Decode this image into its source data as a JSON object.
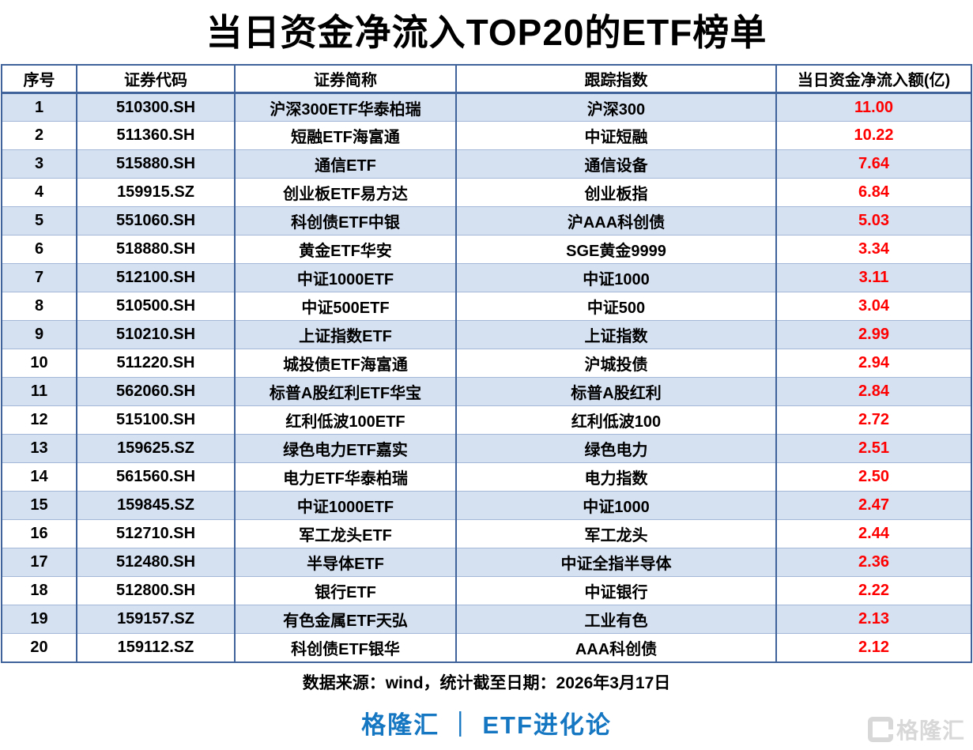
{
  "title": "当日资金净流入TOP20的ETF榜单",
  "chart_data": {
    "type": "table",
    "title": "当日资金净流入TOP20的ETF榜单",
    "columns": [
      "序号",
      "证券代码",
      "证券简称",
      "跟踪指数",
      "当日资金净流入额(亿)"
    ],
    "rows": [
      [
        "1",
        "510300.SH",
        "沪深300ETF华泰柏瑞",
        "沪深300",
        "11.00"
      ],
      [
        "2",
        "511360.SH",
        "短融ETF海富通",
        "中证短融",
        "10.22"
      ],
      [
        "3",
        "515880.SH",
        "通信ETF",
        "通信设备",
        "7.64"
      ],
      [
        "4",
        "159915.SZ",
        "创业板ETF易方达",
        "创业板指",
        "6.84"
      ],
      [
        "5",
        "551060.SH",
        "科创债ETF中银",
        "沪AAA科创债",
        "5.03"
      ],
      [
        "6",
        "518880.SH",
        "黄金ETF华安",
        "SGE黄金9999",
        "3.34"
      ],
      [
        "7",
        "512100.SH",
        "中证1000ETF",
        "中证1000",
        "3.11"
      ],
      [
        "8",
        "510500.SH",
        "中证500ETF",
        "中证500",
        "3.04"
      ],
      [
        "9",
        "510210.SH",
        "上证指数ETF",
        "上证指数",
        "2.99"
      ],
      [
        "10",
        "511220.SH",
        "城投债ETF海富通",
        "沪城投债",
        "2.94"
      ],
      [
        "11",
        "562060.SH",
        "标普A股红利ETF华宝",
        "标普A股红利",
        "2.84"
      ],
      [
        "12",
        "515100.SH",
        "红利低波100ETF",
        "红利低波100",
        "2.72"
      ],
      [
        "13",
        "159625.SZ",
        "绿色电力ETF嘉实",
        "绿色电力",
        "2.51"
      ],
      [
        "14",
        "561560.SH",
        "电力ETF华泰柏瑞",
        "电力指数",
        "2.50"
      ],
      [
        "15",
        "159845.SZ",
        "中证1000ETF",
        "中证1000",
        "2.47"
      ],
      [
        "16",
        "512710.SH",
        "军工龙头ETF",
        "军工龙头",
        "2.44"
      ],
      [
        "17",
        "512480.SH",
        "半导体ETF",
        "中证全指半导体",
        "2.36"
      ],
      [
        "18",
        "512800.SH",
        "银行ETF",
        "中证银行",
        "2.22"
      ],
      [
        "19",
        "159157.SZ",
        "有色金属ETF天弘",
        "工业有色",
        "2.13"
      ],
      [
        "20",
        "159112.SZ",
        "科创债ETF银华",
        "AAA科创债",
        "2.12"
      ]
    ]
  },
  "footer": {
    "source_note": "数据来源：wind，统计截至日期：2026年3月17日",
    "brand": "格隆汇 ｜ ETF进化论",
    "watermark_text": "格隆汇"
  },
  "colors": {
    "row_alt": "#d5e0f1",
    "border_strong": "#41639c",
    "border_light": "#a3b8d8",
    "value_red": "#fe0000",
    "brand_blue": "#1576c2",
    "watermark_gray": "#d8d8d8"
  }
}
